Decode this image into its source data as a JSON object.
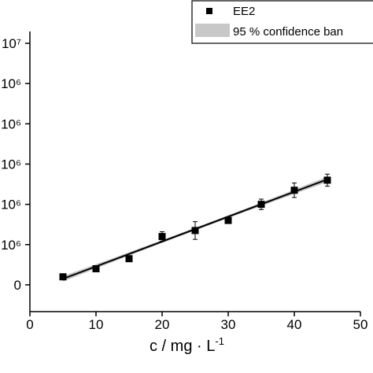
{
  "chart_data": {
    "type": "scatter",
    "xlabel": "c / mg · L",
    "xlabel_superscript": "-1",
    "x_ticks": [
      "0",
      "10",
      "20",
      "30",
      "40",
      "50"
    ],
    "xlim": [
      0,
      50
    ],
    "y_tick_labels": [
      "0",
      "10⁶",
      "10⁶",
      "10⁶",
      "10⁶",
      "10⁶",
      "10⁷"
    ],
    "ylim_fraction": [
      0,
      1
    ],
    "legend": {
      "position": "top-right",
      "entries": [
        {
          "label": "EE2",
          "marker": "square"
        },
        {
          "label": "95 % confidence ban",
          "marker": "band"
        }
      ]
    },
    "series": [
      {
        "name": "EE2",
        "marker": "square",
        "color": "#000000",
        "x": [
          5,
          10,
          15,
          20,
          25,
          30,
          35,
          40,
          45
        ],
        "y": [
          0.2,
          0.4,
          0.65,
          1.2,
          1.35,
          1.6,
          2.0,
          2.35,
          2.6
        ],
        "y_err": [
          0.02,
          0.03,
          0.06,
          0.12,
          0.22,
          0.06,
          0.13,
          0.18,
          0.15
        ]
      }
    ],
    "fit_line": {
      "x": [
        5,
        45
      ],
      "y": [
        0.15,
        2.62
      ],
      "color": "#000000"
    },
    "confidence_band": {
      "color": "#c8c8c8",
      "half_width_ends": 0.07,
      "half_width_mid": 0.035
    }
  }
}
